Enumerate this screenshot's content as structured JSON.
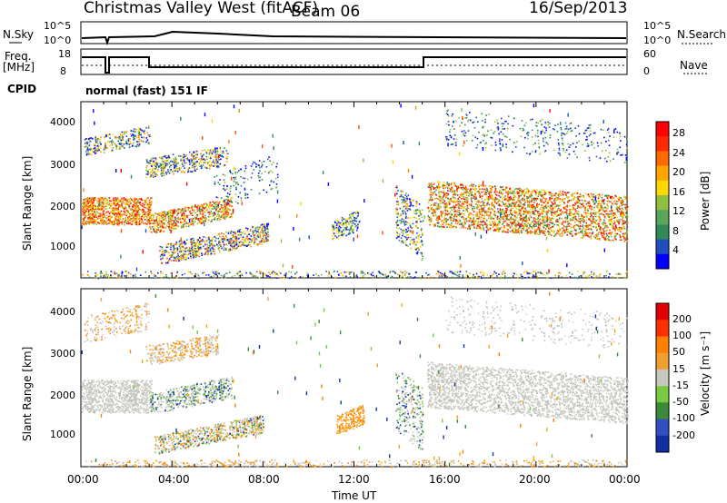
{
  "header": {
    "title": "Christmas Valley West (fitACF)",
    "beam": "Beam 06",
    "date": "16/Sep/2013"
  },
  "params": {
    "nsky_label": "N.Sky",
    "nsky_ticks": [
      "10^5",
      "10^0"
    ],
    "nsearch_label": "N.Search",
    "freq_label": "Freq.",
    "freq_unit": "[MHz]",
    "freq_ticks": [
      "18",
      "8"
    ],
    "nave_ticks": [
      "60",
      "0"
    ],
    "nave_label": "Nave",
    "cpid_label": "CPID",
    "cpid_value": "normal (fast) 151 IF"
  },
  "chart_data": [
    {
      "type": "heatmap",
      "name": "power",
      "ylabel": "Slant Range [km]",
      "ylim": [
        200,
        4500
      ],
      "yticks": [
        "4000",
        "3000",
        "2000",
        "1000"
      ],
      "colorbar": {
        "label": "Power [dB]",
        "ticks": [
          "28",
          "24",
          "20",
          "16",
          "12",
          "8",
          "4"
        ],
        "colors": [
          "#0000ff",
          "#1f4fbf",
          "#2e8b57",
          "#5aa55a",
          "#8fbf3f",
          "#ffd700",
          "#ffa500",
          "#ff6a00",
          "#ff2a00",
          "#ff0000"
        ]
      }
    },
    {
      "type": "heatmap",
      "name": "velocity",
      "ylabel": "Slant Range [km]",
      "ylim": [
        200,
        4500
      ],
      "yticks": [
        "4000",
        "3000",
        "2000",
        "1000"
      ],
      "colorbar": {
        "label": "Velocity [m s⁻¹]",
        "ticks": [
          "200",
          "100",
          "50",
          "15",
          "-15",
          "-50",
          "-100",
          "-200"
        ],
        "colors": [
          "#1030a0",
          "#3050c0",
          "#3a8a3a",
          "#7ac943",
          "#c8c8c0",
          "#f0a030",
          "#ff7f00",
          "#ff3000",
          "#e00000"
        ]
      }
    }
  ],
  "xaxis": {
    "label": "Time UT",
    "ticks": [
      "00:00",
      "04:00",
      "08:00",
      "12:00",
      "16:00",
      "20:00",
      "00:00"
    ]
  }
}
